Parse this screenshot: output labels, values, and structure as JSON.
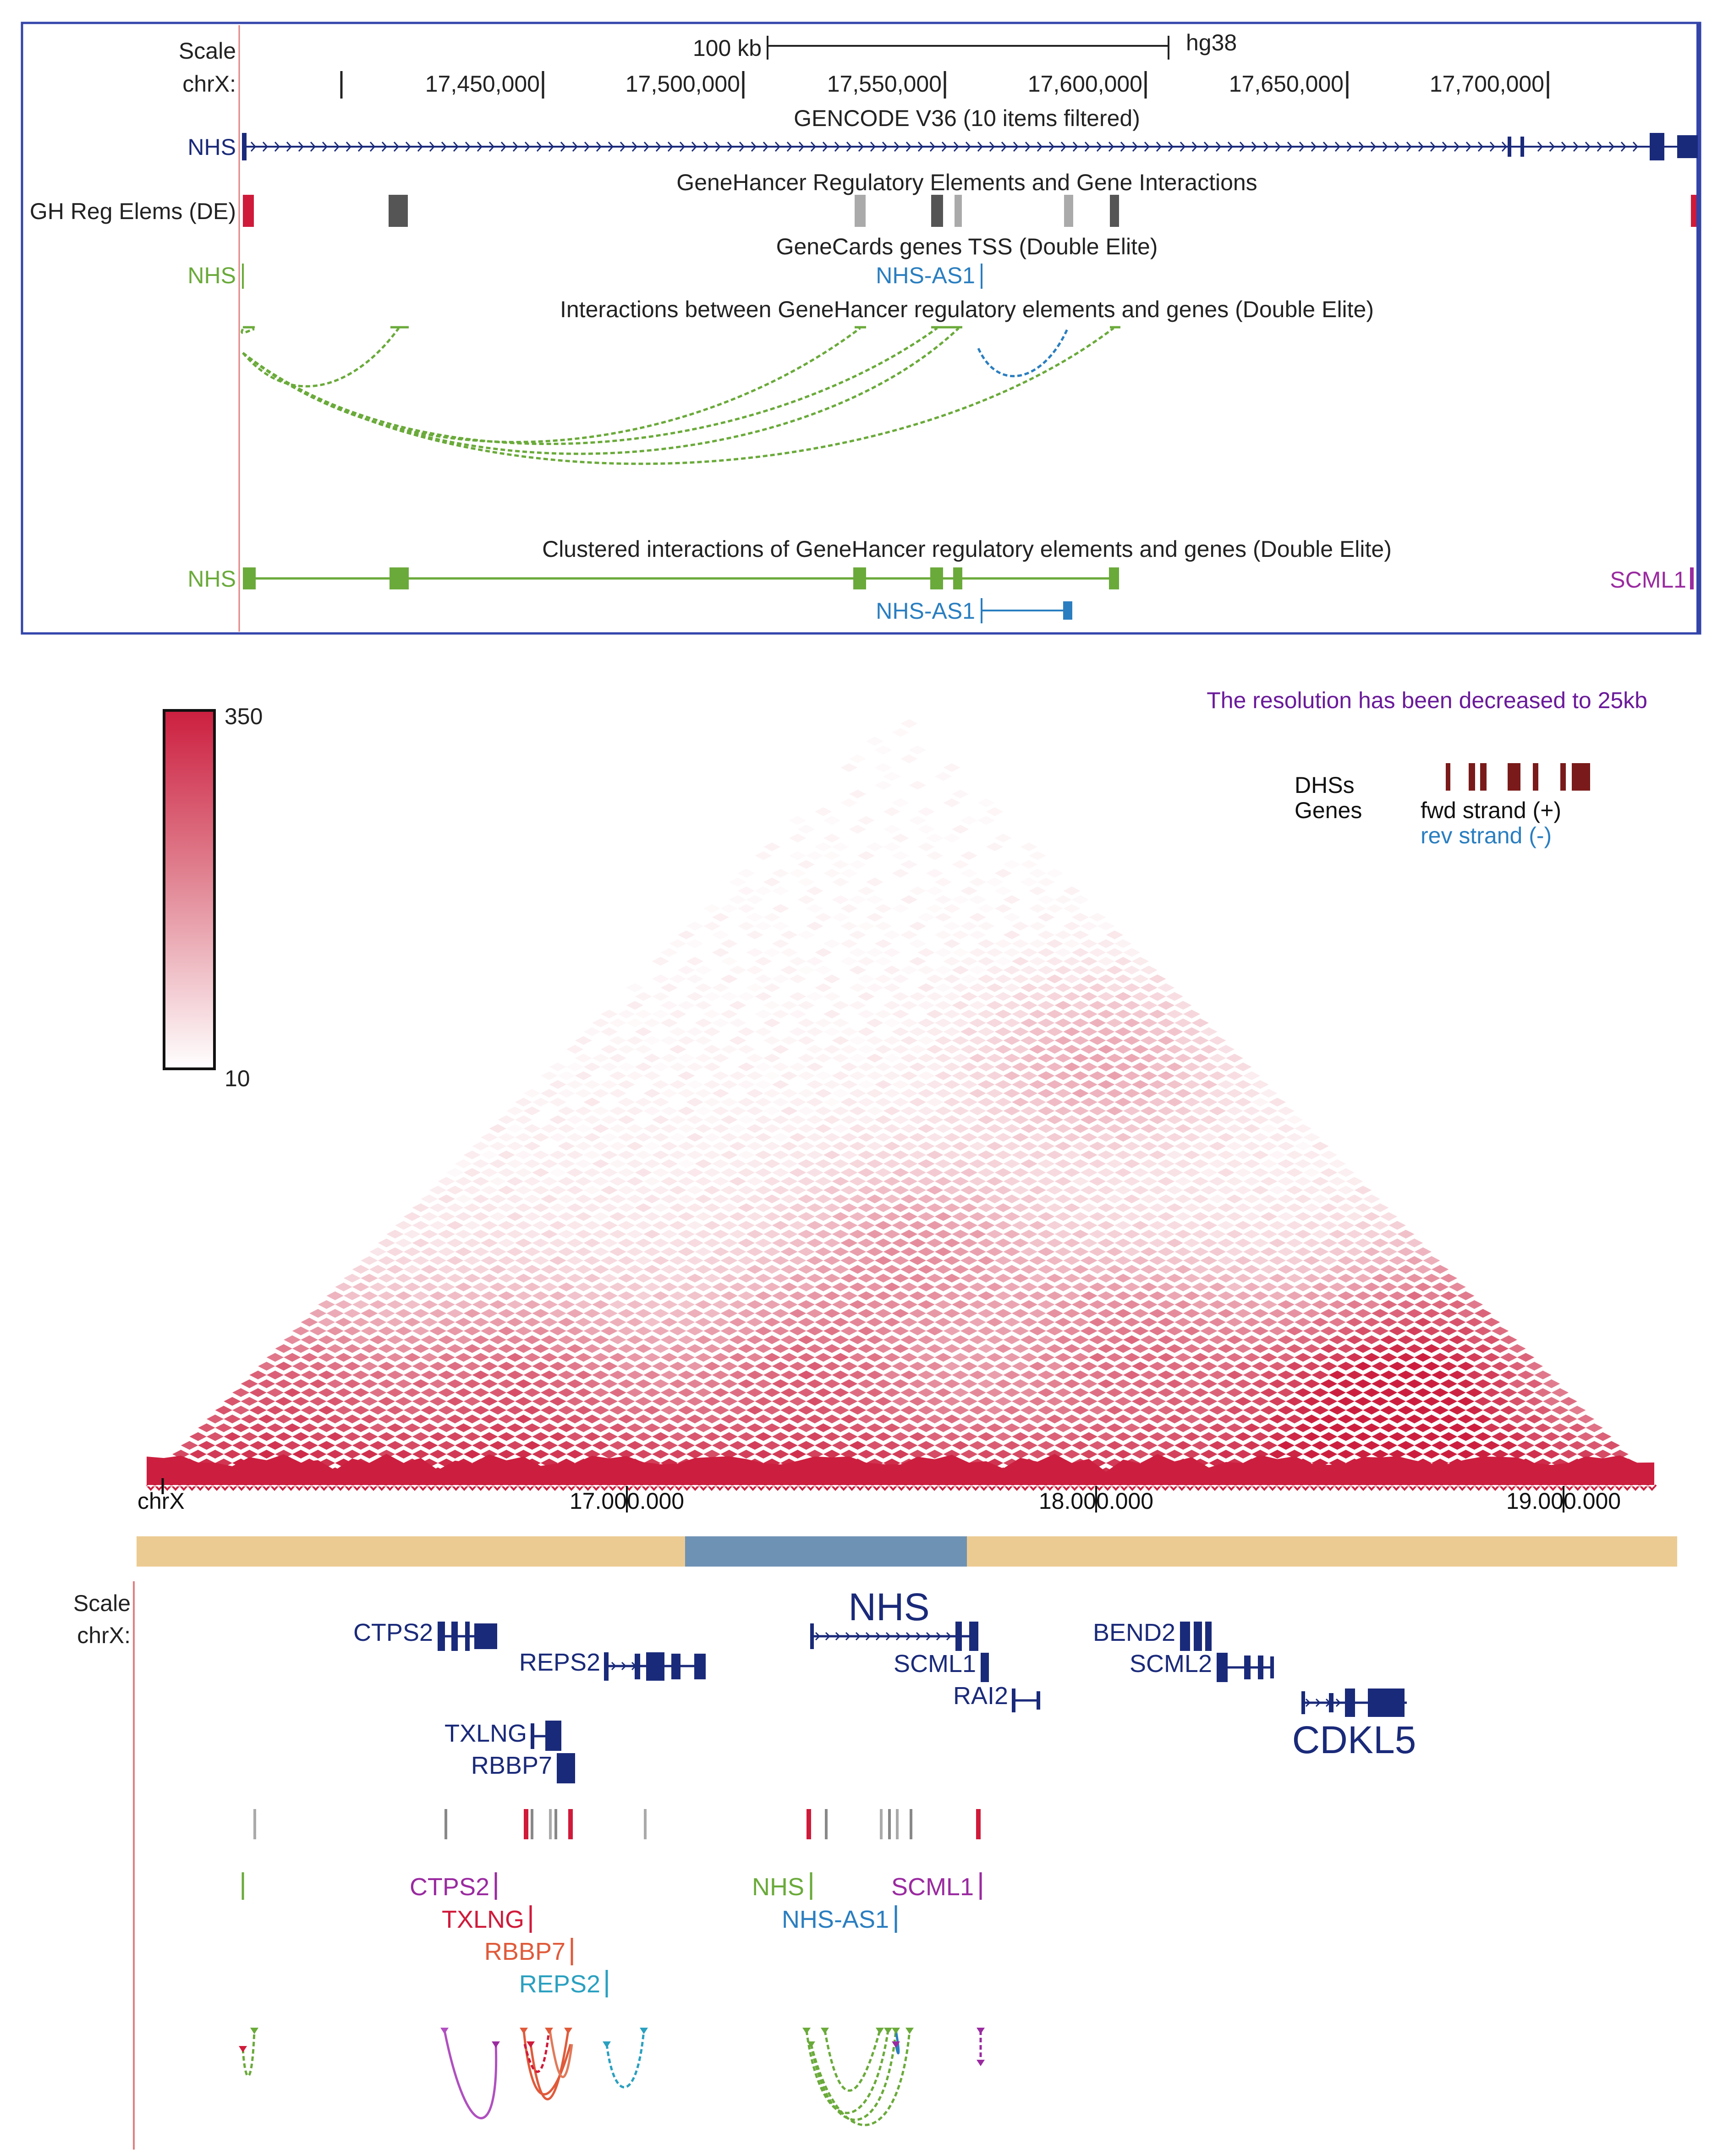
{
  "top": {
    "scale_label": "Scale",
    "chr_label": "chrX:",
    "scalebar_label": "100 kb",
    "assembly": "hg38",
    "ticks": [
      "17,450,000",
      "17,500,000",
      "17,550,000",
      "17,600,000",
      "17,650,000",
      "17,700,000"
    ],
    "gencode_title": "GENCODE V36 (10 items filtered)",
    "gencode_gene": "NHS",
    "genehancer_title": "GeneHancer Regulatory Elements and Gene Interactions",
    "gh_track_label": "GH Reg Elems (DE)",
    "tss_title": "GeneCards genes TSS (Double Elite)",
    "tss_nhs": "NHS",
    "tss_nhs_as1": "NHS-AS1",
    "interactions_title": "Interactions between GeneHancer regulatory elements and genes (Double Elite)",
    "clustered_title": "Clustered interactions of GeneHancer regulatory elements and genes (Double Elite)",
    "clustered_nhs": "NHS",
    "clustered_nhs_as1": "NHS-AS1",
    "clustered_scml1": "SCML1"
  },
  "hic": {
    "colorbar_max": "350",
    "colorbar_min": "10",
    "resolution_note": "The resolution has been decreased to 25kb",
    "legend_dhss": "DHSs",
    "legend_genes": "Genes",
    "legend_fwd": "fwd strand (+)",
    "legend_rev": "rev strand (-)",
    "chr_label": "chrX",
    "axis_ticks": [
      "17.000.000",
      "18.000.000",
      "19.000.000"
    ]
  },
  "bottom": {
    "scale_label": "Scale",
    "chr_label": "chrX:",
    "genes": [
      "CTPS2",
      "REPS2",
      "TXLNG",
      "RBBP7",
      "NHS",
      "SCML1",
      "RAI2",
      "BEND2",
      "SCML2",
      "CDKL5"
    ],
    "tss": [
      "CTPS2",
      "TXLNG",
      "RBBP7",
      "REPS2",
      "NHS",
      "NHS-AS1",
      "SCML1"
    ]
  },
  "colors": {
    "frame_blue": "#3344aa",
    "gene_navy": "#1a2a7a",
    "gh_green": "#6aaa3a",
    "tss_blue": "#2a7ec0",
    "hic_red": "#cc1f3f",
    "scml1_purple": "#9a2aa0",
    "dhs_dark_red": "#7a1a1a",
    "region_tan": "#eccb92",
    "region_blue": "#6e92b4"
  }
}
